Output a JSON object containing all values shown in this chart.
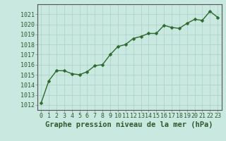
{
  "x": [
    0,
    1,
    2,
    3,
    4,
    5,
    6,
    7,
    8,
    9,
    10,
    11,
    12,
    13,
    14,
    15,
    16,
    17,
    18,
    19,
    20,
    21,
    22,
    23
  ],
  "y": [
    1012.2,
    1014.4,
    1015.4,
    1015.4,
    1015.1,
    1015.0,
    1015.3,
    1015.9,
    1016.0,
    1017.0,
    1017.8,
    1018.0,
    1018.6,
    1018.8,
    1019.1,
    1019.1,
    1019.9,
    1019.7,
    1019.6,
    1020.1,
    1020.5,
    1020.4,
    1021.3,
    1020.7
  ],
  "line_color": "#2d6a2d",
  "marker_color": "#2d6a2d",
  "bg_color": "#c8e8e0",
  "grid_color": "#b0d4cc",
  "title": "Graphe pression niveau de la mer (hPa)",
  "ylim_min": 1011.5,
  "ylim_max": 1022.0,
  "yticks": [
    1012,
    1013,
    1014,
    1015,
    1016,
    1017,
    1018,
    1019,
    1020,
    1021
  ],
  "xlim_min": -0.5,
  "xlim_max": 23.5,
  "xticks": [
    0,
    1,
    2,
    3,
    4,
    5,
    6,
    7,
    8,
    9,
    10,
    11,
    12,
    13,
    14,
    15,
    16,
    17,
    18,
    19,
    20,
    21,
    22,
    23
  ],
  "title_fontsize": 7.5,
  "tick_fontsize": 6.0,
  "title_color": "#2d5a2d",
  "line_width": 1.0,
  "marker_size": 2.5
}
